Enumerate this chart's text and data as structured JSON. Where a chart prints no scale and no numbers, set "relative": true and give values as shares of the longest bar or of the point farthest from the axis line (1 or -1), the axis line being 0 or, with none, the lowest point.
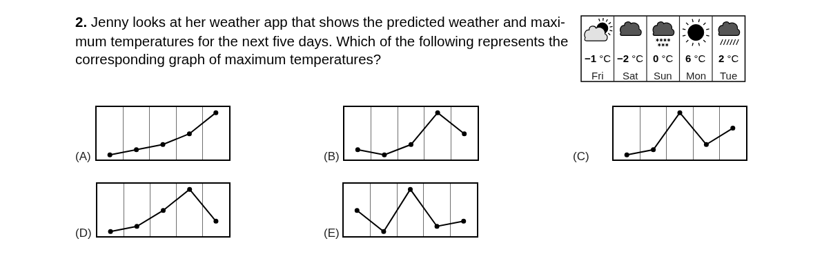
{
  "chart_data": [
    {
      "type": "other",
      "title": "2. Jenny looks at her weather app that shows the predicted weather and maxi-\nmum temperatures for the next five days. Which of the following represents the\ncorresponding graph of maximum temperatures?"
    },
    {
      "type": "other",
      "categories": [
        "Fri",
        "Sat",
        "Sun",
        "Mon",
        "Tue"
      ],
      "values": [
        -1,
        -2,
        0,
        6,
        2
      ],
      "value_labels": [
        "−1 °C",
        "−2 °C",
        "0 °C",
        "6 °C",
        "2 °C"
      ]
    },
    {
      "type": "line",
      "title": "(A)",
      "categories": [
        null,
        null,
        null,
        null,
        null
      ],
      "values": [
        0.1,
        0.21,
        0.32,
        0.55,
        1
      ],
      "relative": true,
      "color": "#000000",
      "marker": "circle",
      "grid": "x"
    },
    {
      "type": "line",
      "title": "(B)",
      "categories": [
        null,
        null,
        null,
        null,
        null
      ],
      "values": [
        0.21,
        0.1,
        0.32,
        1,
        0.55
      ],
      "relative": true,
      "color": "#000000",
      "marker": "circle",
      "grid": "x"
    },
    {
      "type": "line",
      "title": "(C)",
      "categories": [
        null,
        null,
        null,
        null,
        null
      ],
      "values": [
        0.1,
        0.21,
        1,
        0.32,
        0.67
      ],
      "relative": true,
      "color": "#000000",
      "marker": "circle",
      "grid": "x"
    },
    {
      "type": "line",
      "title": "(D)",
      "categories": [
        null,
        null,
        null,
        null,
        null
      ],
      "values": [
        0.1,
        0.21,
        0.55,
        1,
        0.32
      ],
      "relative": true,
      "color": "#000000",
      "marker": "circle",
      "grid": "x"
    },
    {
      "type": "line",
      "title": "(E)",
      "categories": [
        null,
        null,
        null,
        null,
        null
      ],
      "values": [
        0.55,
        0.1,
        1,
        0.21,
        0.32
      ],
      "relative": true,
      "color": "#000000",
      "marker": "circle",
      "grid": "x"
    }
  ]
}
